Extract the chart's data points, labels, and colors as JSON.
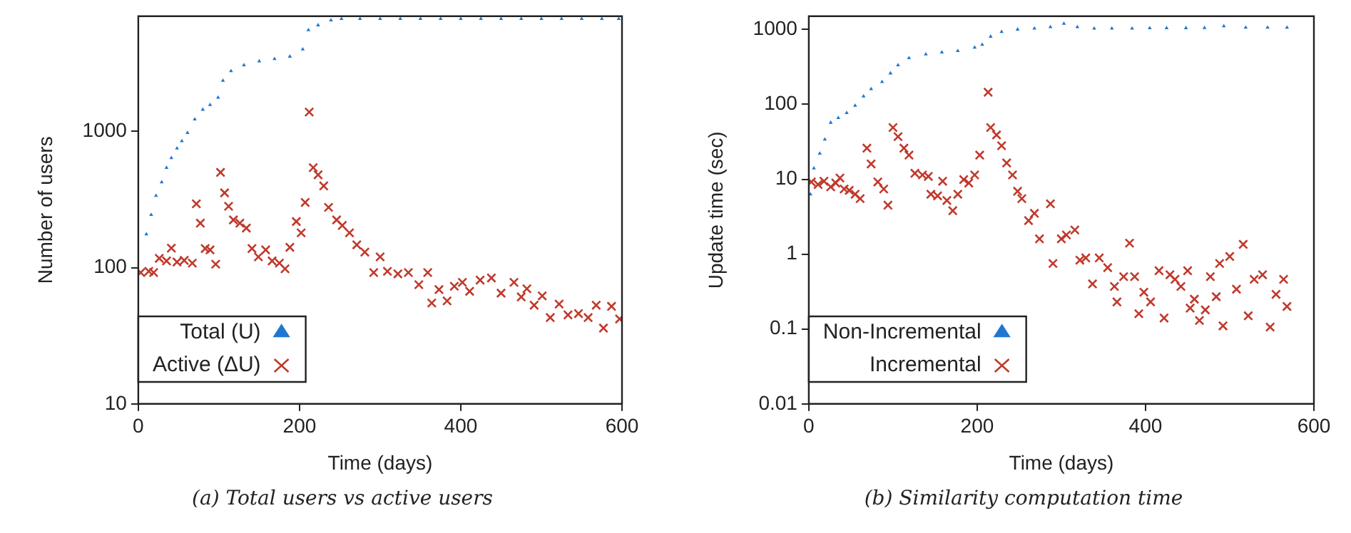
{
  "chart_data": [
    {
      "type": "scatter",
      "xlabel": "Time (days)",
      "ylabel": "Number of users",
      "log": "y",
      "xlim": [
        0,
        600
      ],
      "xticks": [
        0,
        200,
        400,
        600
      ],
      "ylim": [
        10,
        7000
      ],
      "yticks": [
        10,
        100,
        1000
      ],
      "grid": false,
      "legend": "bottom",
      "annotations": [
        "(a) Total users vs active users"
      ],
      "series": [
        {
          "name": "Total (U)",
          "color": "#1f77d0",
          "marker": "triangle",
          "x": [
            10,
            16,
            22,
            29,
            35,
            41,
            48,
            54,
            61,
            70,
            80,
            89,
            99,
            105,
            115,
            131,
            150,
            169,
            188,
            204,
            211,
            223,
            239,
            252,
            275,
            300,
            325,
            350,
            375,
            400,
            425,
            450,
            475,
            500,
            525,
            550,
            575,
            596
          ],
          "values": [
            176,
            244,
            337,
            424,
            541,
            638,
            751,
            849,
            976,
            1226,
            1445,
            1566,
            1770,
            2356,
            2772,
            3060,
            3270,
            3400,
            3545,
            4000,
            5550,
            6020,
            6540,
            6700,
            6700,
            6700,
            6700,
            6700,
            6700,
            6700,
            6700,
            6700,
            6700,
            6700,
            6700,
            6700,
            6700,
            6700
          ]
        },
        {
          "name": "Active (ΔU)",
          "color": "#c0392b",
          "marker": "cross",
          "x": [
            3,
            13,
            19,
            26,
            35,
            41,
            48,
            57,
            67,
            72,
            77,
            83,
            89,
            96,
            102,
            107,
            112,
            118,
            126,
            134,
            141,
            149,
            158,
            166,
            175,
            182,
            188,
            196,
            202,
            207,
            212,
            217,
            223,
            230,
            236,
            246,
            253,
            262,
            271,
            281,
            292,
            300,
            309,
            322,
            335,
            348,
            359,
            364,
            373,
            383,
            392,
            402,
            411,
            424,
            438,
            450,
            466,
            475,
            482,
            491,
            501,
            511,
            522,
            533,
            546,
            558,
            568,
            577,
            587,
            597
          ],
          "values": [
            92,
            94,
            92,
            117,
            112,
            139,
            110,
            113,
            108,
            294,
            212,
            138,
            135,
            106,
            500,
            354,
            282,
            224,
            212,
            195,
            138,
            120,
            135,
            112,
            108,
            98,
            141,
            218,
            180,
            301,
            1387,
            542,
            480,
            398,
            277,
            224,
            204,
            180,
            147,
            130,
            92,
            120,
            94,
            90,
            92,
            75,
            92,
            55,
            69,
            57,
            73,
            78,
            67,
            81,
            84,
            65,
            78,
            61,
            70,
            53,
            62,
            43,
            54,
            45,
            46,
            43,
            53,
            36,
            52,
            42
          ]
        }
      ]
    },
    {
      "type": "scatter",
      "xlabel": "Time (days)",
      "ylabel": "Update time (sec)",
      "log": "y",
      "xlim": [
        0,
        600
      ],
      "xticks": [
        0,
        200,
        400,
        600
      ],
      "ylim": [
        0.01,
        1500
      ],
      "yticks": [
        0.01,
        0.1,
        1,
        10,
        100,
        1000
      ],
      "grid": false,
      "legend": "bottom",
      "annotations": [
        "(b) Similarity computation time"
      ],
      "series": [
        {
          "name": "Non-Incremental",
          "color": "#1f77d0",
          "marker": "triangle",
          "x": [
            2,
            6,
            13,
            19,
            26,
            35,
            45,
            55,
            65,
            74,
            87,
            97,
            106,
            119,
            139,
            158,
            177,
            197,
            206,
            216,
            229,
            248,
            268,
            287,
            303,
            319,
            339,
            360,
            384,
            405,
            425,
            448,
            470,
            493,
            519,
            545,
            568
          ],
          "values": [
            6.3,
            14,
            22,
            34,
            57,
            66,
            77,
            96,
            128,
            160,
            199,
            260,
            333,
            415,
            466,
            495,
            517,
            573,
            625,
            803,
            929,
            1000,
            1030,
            1076,
            1193,
            1076,
            1030,
            1030,
            1030,
            1040,
            1040,
            1045,
            1050,
            1108,
            1060,
            1060,
            1060
          ]
        },
        {
          "name": "Incremental",
          "color": "#c0392b",
          "marker": "cross",
          "x": [
            3,
            11,
            18,
            26,
            32,
            37,
            42,
            48,
            55,
            61,
            69,
            74,
            82,
            89,
            94,
            100,
            106,
            113,
            119,
            126,
            135,
            142,
            145,
            153,
            159,
            164,
            171,
            177,
            184,
            190,
            197,
            203,
            213,
            216,
            223,
            229,
            235,
            242,
            248,
            253,
            261,
            268,
            274,
            287,
            290,
            300,
            306,
            316,
            322,
            329,
            337,
            345,
            355,
            363,
            366,
            374,
            381,
            387,
            392,
            398,
            406,
            416,
            422,
            429,
            435,
            442,
            450,
            453,
            458,
            464,
            471,
            477,
            484,
            488,
            492,
            500,
            508,
            516,
            522,
            529,
            539,
            548,
            555,
            564,
            568
          ],
          "values": [
            9.2,
            8.5,
            9.4,
            7.9,
            8.9,
            10.4,
            7.4,
            7.1,
            6.3,
            5.5,
            26,
            16,
            9.2,
            7.4,
            4.5,
            49,
            37,
            26,
            21,
            12,
            11.4,
            10.9,
            6.3,
            6,
            9.4,
            5.2,
            3.8,
            6.3,
            9.9,
            8.9,
            11.4,
            21,
            145,
            49,
            39,
            28,
            16.5,
            11.4,
            6.9,
            5.5,
            2.8,
            3.5,
            1.6,
            4.7,
            0.75,
            1.6,
            1.8,
            2.1,
            0.83,
            0.89,
            0.4,
            0.89,
            0.66,
            0.37,
            0.23,
            0.5,
            1.4,
            0.5,
            0.16,
            0.31,
            0.23,
            0.6,
            0.14,
            0.53,
            0.46,
            0.37,
            0.6,
            0.19,
            0.25,
            0.13,
            0.18,
            0.5,
            0.27,
            0.75,
            0.11,
            0.93,
            0.34,
            1.35,
            0.15,
            0.46,
            0.53,
            0.106,
            0.29,
            0.46,
            0.2
          ]
        }
      ]
    }
  ]
}
